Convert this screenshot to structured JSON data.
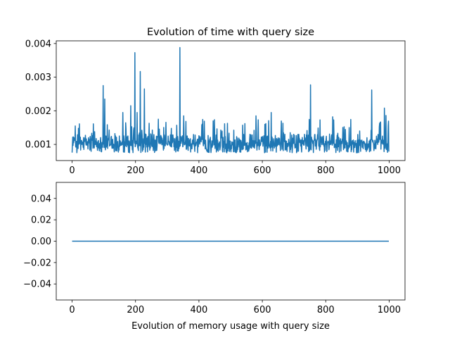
{
  "chart_data": [
    {
      "type": "line",
      "title": "Evolution of time with query size",
      "xlabel": "",
      "ylabel": "",
      "xlim": [
        -50,
        1050
      ],
      "ylim": [
        0.00052,
        0.00408
      ],
      "xticks": [
        0,
        200,
        400,
        600,
        800,
        1000
      ],
      "xtick_labels": [
        "0",
        "200",
        "400",
        "600",
        "800",
        "1000"
      ],
      "yticks": [
        0.001,
        0.002,
        0.003,
        0.004
      ],
      "ytick_labels": [
        "0.001",
        "0.002",
        "0.003",
        "0.004"
      ],
      "grid": false,
      "line_color": "#1f77b4",
      "series": [
        {
          "x_range": [
            0,
            999
          ],
          "baseline": 0.00095,
          "noise_range": [
            0.00075,
            0.00155
          ],
          "spikes": [
            [
              98,
              0.00275
            ],
            [
              103,
              0.00235
            ],
            [
              160,
              0.00195
            ],
            [
              185,
              0.00215
            ],
            [
              198,
              0.00373
            ],
            [
              205,
              0.00195
            ],
            [
              215,
              0.00317
            ],
            [
              228,
              0.00265
            ],
            [
              272,
              0.00175
            ],
            [
              340,
              0.00388
            ],
            [
              352,
              0.00185
            ],
            [
              410,
              0.0016
            ],
            [
              545,
              0.00162
            ],
            [
              580,
              0.00185
            ],
            [
              628,
              0.00195
            ],
            [
              665,
              0.00163
            ],
            [
              752,
              0.00277
            ],
            [
              782,
              0.00173
            ],
            [
              822,
              0.00182
            ],
            [
              945,
              0.00262
            ],
            [
              985,
              0.00208
            ],
            [
              990,
              0.00186
            ]
          ]
        }
      ]
    },
    {
      "type": "line",
      "title": "",
      "xlabel": "Evolution of memory usage with query size",
      "ylabel": "",
      "xlim": [
        -50,
        1050
      ],
      "ylim": [
        -0.055,
        0.055
      ],
      "xticks": [
        0,
        200,
        400,
        600,
        800,
        1000
      ],
      "xtick_labels": [
        "0",
        "200",
        "400",
        "600",
        "800",
        "1000"
      ],
      "yticks": [
        -0.04,
        -0.02,
        0.0,
        0.02,
        0.04
      ],
      "ytick_labels": [
        "−0.04",
        "−0.02",
        "0.00",
        "0.02",
        "0.04"
      ],
      "grid": false,
      "line_color": "#1f77b4",
      "series": [
        {
          "x": [
            0,
            999
          ],
          "y": [
            0.0,
            0.0
          ]
        }
      ]
    }
  ]
}
